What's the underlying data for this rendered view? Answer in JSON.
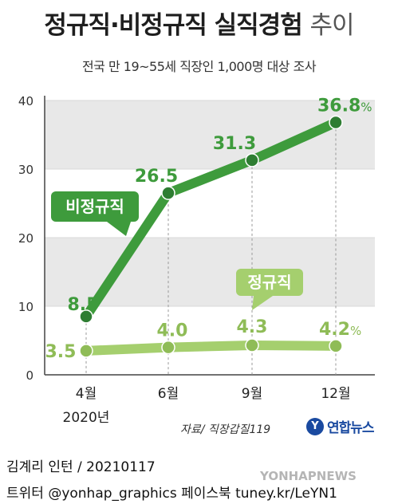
{
  "header": {
    "title_main": "정규직·비정규직 실직경험",
    "title_suffix": "추이",
    "subtitle": "전국 만 19~55세 직장인 1,000명 대상 조사"
  },
  "chart_data": {
    "type": "line",
    "categories": [
      "4월",
      "6월",
      "9월",
      "12월"
    ],
    "x_sublabels": [
      "2020년",
      "",
      "",
      ""
    ],
    "yticks": [
      0,
      10,
      20,
      30,
      40
    ],
    "ylim": [
      0,
      40
    ],
    "grid": "alternating horizontal bands",
    "series": [
      {
        "name": "비정규직",
        "values": [
          8.5,
          26.5,
          31.3,
          36.8
        ],
        "labels": [
          "8.5",
          "26.5",
          "31.3",
          "36.8"
        ],
        "color": "#3e9b3c"
      },
      {
        "name": "정규직",
        "values": [
          3.5,
          4.0,
          4.3,
          4.2
        ],
        "labels": [
          "3.5",
          "4.0",
          "4.3",
          "4.2"
        ],
        "color": "#a5cf6e"
      }
    ],
    "unit": "%"
  },
  "colors": {
    "dark_green": "#3e9b3c",
    "light_green": "#a5cf6e",
    "label_light_green": "#8fbc57",
    "band_gray": "#e8e8e8"
  },
  "source": "자료/ 직장갑질119",
  "logo": {
    "mark": "Y",
    "text": "연합뉴스"
  },
  "footer": {
    "line1": "김계리 인턴 / 20210117",
    "line2": "트위터 @yonhap_graphics  페이스북 tuney.kr/LeYN1"
  },
  "watermark": "YONHAPNEWS"
}
